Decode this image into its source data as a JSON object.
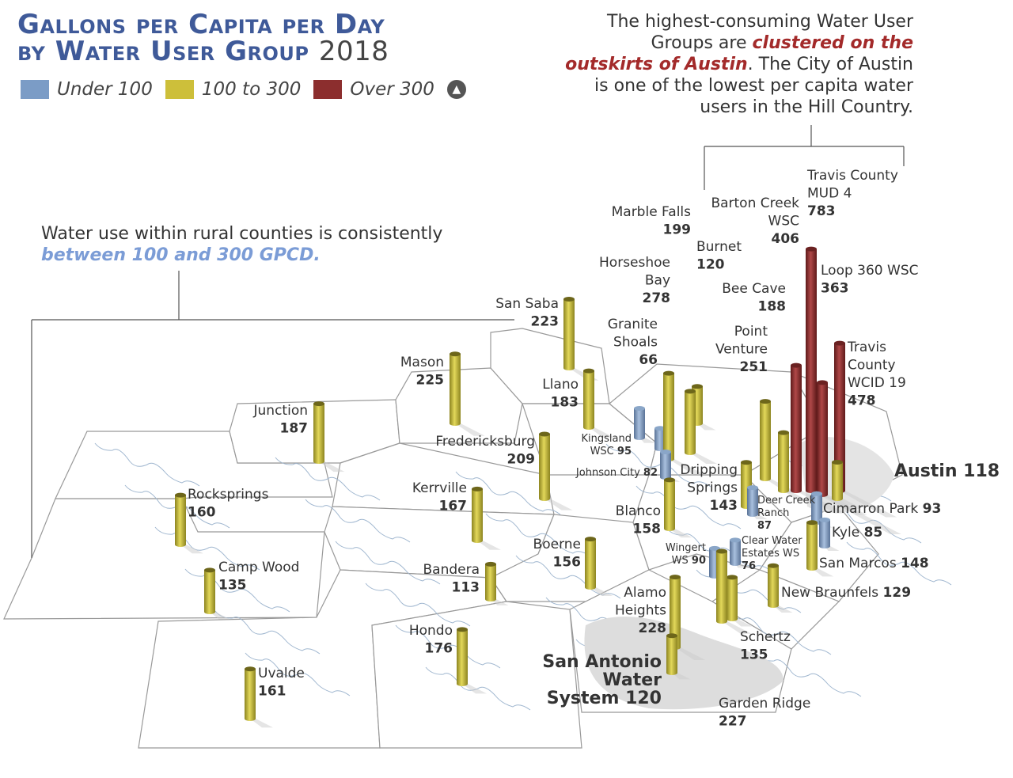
{
  "title": {
    "line1": "Gallons per Capita per Day",
    "line2": "by Water User Group",
    "year": "2018"
  },
  "legend": [
    {
      "label": "Under 100",
      "color": "#7b9cc6"
    },
    {
      "label": "100 to 300",
      "color": "#cdbf3a"
    },
    {
      "label": "Over 300",
      "color": "#8c2e2e"
    }
  ],
  "north_icon": "north-arrow-icon",
  "annotation_right": {
    "pre": "The highest-consuming Water User Groups are ",
    "highlight": "clustered on the outskirts of Austin",
    "post": ". The City of Austin is one of the lowest per capita water users in the Hill Country."
  },
  "annotation_left": {
    "pre": "Water use within rural counties is consistently ",
    "highlight": "between 100 and 300 GPCD."
  },
  "chart_data": {
    "type": "map-3d-bars",
    "unit": "GPCD",
    "thresholds": {
      "low": 100,
      "high": 300
    },
    "groups": [
      {
        "name": [
          "Junction"
        ],
        "value": 187
      },
      {
        "name": [
          "Rocksprings"
        ],
        "value": 160
      },
      {
        "name": [
          "Camp Wood"
        ],
        "value": 135
      },
      {
        "name": [
          "Uvalde"
        ],
        "value": 161
      },
      {
        "name": [
          "Mason"
        ],
        "value": 225
      },
      {
        "name": [
          "San Saba"
        ],
        "value": 223
      },
      {
        "name": [
          "Llano"
        ],
        "value": 183
      },
      {
        "name": [
          "Fredericksburg"
        ],
        "value": 209
      },
      {
        "name": [
          "Kerrville"
        ],
        "value": 167
      },
      {
        "name": [
          "Bandera"
        ],
        "value": 113
      },
      {
        "name": [
          "Hondo"
        ],
        "value": 176
      },
      {
        "name": [
          "Boerne"
        ],
        "value": 156
      },
      {
        "name": [
          "Alamo",
          "Heights"
        ],
        "value": 228
      },
      {
        "name": [
          "San Antonio",
          "Water",
          "System"
        ],
        "value": 120
      },
      {
        "name": [
          "Kingsland",
          "WSC"
        ],
        "value": 95
      },
      {
        "name": [
          "Johnson City"
        ],
        "value": 82
      },
      {
        "name": [
          "Blanco"
        ],
        "value": 158
      },
      {
        "name": [
          "Granite",
          "Shoals"
        ],
        "value": 66
      },
      {
        "name": [
          "Horseshoe",
          "Bay"
        ],
        "value": 278
      },
      {
        "name": [
          "Marble Falls"
        ],
        "value": 199
      },
      {
        "name": [
          "Burnet"
        ],
        "value": 120
      },
      {
        "name": [
          "Bee Cave"
        ],
        "value": 188
      },
      {
        "name": [
          "Point",
          "Venture"
        ],
        "value": 251
      },
      {
        "name": [
          "Barton Creek",
          "WSC"
        ],
        "value": 406
      },
      {
        "name": [
          "Travis County",
          "MUD 4"
        ],
        "value": 783
      },
      {
        "name": [
          "Loop 360 WSC"
        ],
        "value": 363
      },
      {
        "name": [
          "Travis",
          "County",
          "WCID 19"
        ],
        "value": 478
      },
      {
        "name": [
          "Dripping",
          "Springs"
        ],
        "value": 143
      },
      {
        "name": [
          "Deer Creek",
          "Ranch"
        ],
        "value": 87
      },
      {
        "name": [
          "Austin"
        ],
        "value": 118
      },
      {
        "name": [
          "Cimarron Park"
        ],
        "value": 93
      },
      {
        "name": [
          "Kyle"
        ],
        "value": 85
      },
      {
        "name": [
          "San Marcos"
        ],
        "value": 148
      },
      {
        "name": [
          "Clear Water",
          "Estates WS"
        ],
        "value": 76
      },
      {
        "name": [
          "Wingert",
          "WS"
        ],
        "value": 90
      },
      {
        "name": [
          "New Braunfels"
        ],
        "value": 129
      },
      {
        "name": [
          "Schertz"
        ],
        "value": 135
      },
      {
        "name": [
          "Garden Ridge"
        ],
        "value": 227
      }
    ]
  }
}
